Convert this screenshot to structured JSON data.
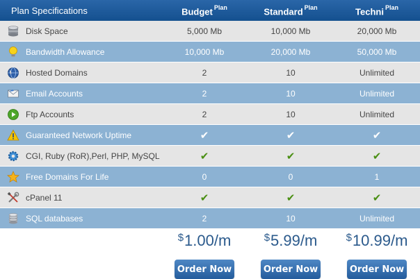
{
  "header": {
    "feature_title": "Plan Specifications",
    "plans": [
      {
        "name": "Budget",
        "tag": "Plan"
      },
      {
        "name": "Standard",
        "tag": "Plan"
      },
      {
        "name": "Techni",
        "tag": "Plan"
      }
    ]
  },
  "rows": [
    {
      "label": "Disk Space",
      "icon": "disk-icon",
      "values": [
        "5,000 Mb",
        "10,000 Mb",
        "20,000 Mb"
      ]
    },
    {
      "label": "Bandwidth Allowance",
      "icon": "lightbulb-icon",
      "values": [
        "10,000 Mb",
        "20,000 Mb",
        "50,000 Mb"
      ]
    },
    {
      "label": "Hosted Domains",
      "icon": "globe-icon",
      "values": [
        "2",
        "10",
        "Unlimited"
      ]
    },
    {
      "label": "Email Accounts",
      "icon": "email-icon",
      "values": [
        "2",
        "10",
        "Unlimited"
      ]
    },
    {
      "label": "Ftp Accounts",
      "icon": "play-icon",
      "values": [
        "2",
        "10",
        "Unlimited"
      ]
    },
    {
      "label": "Guaranteed Network Uptime",
      "icon": "warning-icon",
      "values": [
        "✔",
        "✔",
        "✔"
      ]
    },
    {
      "label": "CGI, Ruby (RoR),Perl, PHP, MySQL",
      "icon": "gear-icon",
      "values": [
        "✔",
        "✔",
        "✔"
      ]
    },
    {
      "label": "Free Domains For Life",
      "icon": "star-icon",
      "values": [
        "0",
        "0",
        "1"
      ]
    },
    {
      "label": "cPanel 11",
      "icon": "tools-icon",
      "values": [
        "✔",
        "✔",
        "✔"
      ]
    },
    {
      "label": "SQL databases",
      "icon": "database-icon",
      "values": [
        "2",
        "10",
        "Unlimited"
      ]
    }
  ],
  "prices": [
    {
      "currency": "$",
      "amount": "1.00/m"
    },
    {
      "currency": "$",
      "amount": "5.99/m"
    },
    {
      "currency": "$",
      "amount": "10.99/m"
    }
  ],
  "order_label": "Order Now",
  "colors": {
    "header": "#1f5c9e",
    "row_gray": "#e5e5e5",
    "row_blue": "#8cb2d3",
    "check": "#4a8f13",
    "price": "#2b5a8c"
  }
}
